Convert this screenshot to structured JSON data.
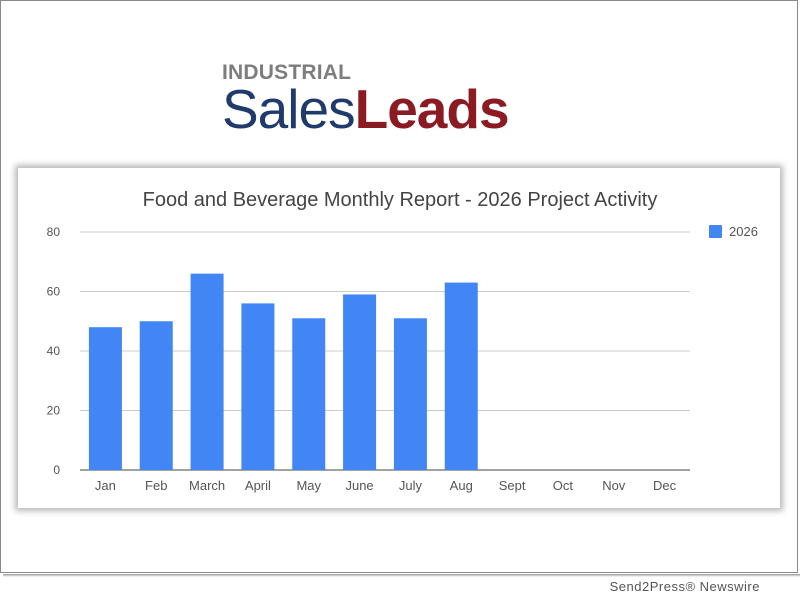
{
  "logo": {
    "top_text": "INDUSTRIAL",
    "sales_text": "Sales",
    "leads_text": "Leads"
  },
  "footer": {
    "credit": "Send2Press® Newswire"
  },
  "colors": {
    "bar": "#4285f4",
    "logo_blue": "#1f3a6b",
    "logo_red": "#8b1a22"
  },
  "chart_data": {
    "type": "bar",
    "title": "Food and Beverage Monthly Report - 2026 Project Activity",
    "xlabel": "",
    "ylabel": "",
    "categories": [
      "Jan",
      "Feb",
      "March",
      "April",
      "May",
      "June",
      "July",
      "Aug",
      "Sept",
      "Oct",
      "Nov",
      "Dec"
    ],
    "series": [
      {
        "name": "2026",
        "values": [
          48,
          50,
          66,
          56,
          51,
          59,
          51,
          63,
          null,
          null,
          null,
          null
        ]
      }
    ],
    "ylim": [
      0,
      80
    ],
    "yticks": [
      "0",
      "20",
      "40",
      "60",
      "80"
    ],
    "grid": true,
    "legend": "right"
  }
}
